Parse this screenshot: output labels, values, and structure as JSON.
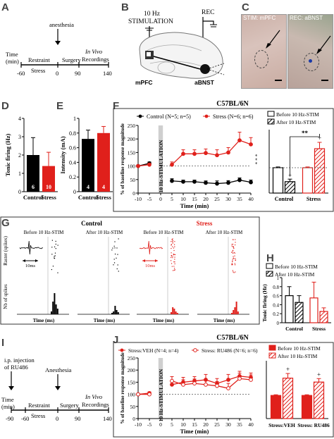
{
  "panels": {
    "A": {
      "letter": "A",
      "anesthesia": "anesthesia",
      "time_label": "Time\n(min)",
      "restraint": "Restraint",
      "surgery": "Surgery",
      "in_vivo": "In Vivo\nRecordings",
      "stress": "Stress",
      "ticks": [
        "-60",
        "0",
        "90",
        "140"
      ]
    },
    "B": {
      "letter": "B",
      "stim_title": "10 Hz\nSTIMULATION",
      "rec": "REC",
      "mpfc": "mPFC",
      "abnst": "aBNST"
    },
    "C": {
      "letter": "C",
      "stim_label": "STIM: mPFC",
      "rec_label": "REC: aBNST"
    },
    "D": {
      "letter": "D",
      "ylabel": "Tonic firing (Hz)",
      "yticks": [
        "0",
        "1",
        "2",
        "3",
        "4"
      ],
      "categories": [
        "Control",
        "Stress"
      ],
      "n_labels": [
        "6",
        "10"
      ]
    },
    "E": {
      "letter": "E",
      "ylabel": "Intensity (mA)",
      "yticks": [
        "0",
        "0.2",
        "0.4",
        "0.6",
        "0.8",
        "1"
      ],
      "categories": [
        "Control",
        "Stress"
      ],
      "n_labels": [
        "4",
        "4"
      ]
    },
    "F": {
      "letter": "F",
      "title": "C57BL/6N",
      "legend_control": "Control (N=5; n=5)",
      "legend_stress": "Stress (N=6; n=6)",
      "ylabel": "% of baseline response magnitude",
      "xlabel": "Time (min)",
      "stim_band": "10 Hz-STIMULATION",
      "yticks": [
        "0",
        "50",
        "100",
        "150",
        "200",
        "250"
      ],
      "xticks": [
        "-10",
        "-5",
        "0",
        "5",
        "10",
        "15",
        "20",
        "25",
        "30",
        "35",
        "40"
      ],
      "sig": "* * *",
      "bar_legend_before": "Before 10 Hz-STIM",
      "bar_legend_after": "After 10 Hz-STIM",
      "bar_categories": [
        "Control",
        "Stress"
      ],
      "bar_sig": "**",
      "plus": "+"
    },
    "G": {
      "letter": "G",
      "control_title": "Control",
      "stress_title": "Stress",
      "before": "Before 10 Hz-STIM",
      "after": "After 10 Hz-STIM",
      "raster_label": "Raster (spikes)",
      "nb_label": "Nb of spikes",
      "xlabel": "Time (ms)",
      "scale": "10ms"
    },
    "H": {
      "letter": "H",
      "legend_before": "Before 10 Hz-STIM",
      "legend_after": "After 10 Hz-STIM",
      "ylabel": "Tonic firing (Hz)",
      "yticks": [
        "0",
        "0.2",
        "0.4",
        "0.6",
        "0.8",
        "1"
      ],
      "categories": [
        "Control",
        "Stress"
      ]
    },
    "I": {
      "letter": "I",
      "injection": "i.p. injection\nof RU486",
      "anesthesia": "Anesthesia",
      "time_label": "Time\n(min)",
      "restraint": "Restraint",
      "surgery": "Surgery",
      "in_vivo": "In Vivo\nRecordings",
      "stress": "Stress",
      "ticks": [
        "-90",
        "-60",
        "0",
        "90",
        "140"
      ]
    },
    "J": {
      "letter": "J",
      "title": "C57BL/6N",
      "legend_veh": "Stress:VEH (N=4; n=4)",
      "legend_ru": "Stress: RU486 (N=6; n=6)",
      "ylabel": "% of baseline response magnitude",
      "xlabel": "Time (min)",
      "stim_band": "10 Hz-STIMULATION",
      "yticks": [
        "0",
        "50",
        "100",
        "150",
        "200",
        "250"
      ],
      "xticks": [
        "-10",
        "-5",
        "0",
        "5",
        "10",
        "15",
        "20",
        "25",
        "30",
        "35",
        "40"
      ],
      "bar_legend_before": "Before 10 Hz-STIM",
      "bar_legend_after": "After 10 Hz-STIM",
      "bar_categories": [
        "Stress:VEH",
        "Stress: RU486"
      ],
      "plus": "+"
    }
  },
  "colors": {
    "red": "#e0201b",
    "black": "#000000",
    "grey_band": "#cfcfcf",
    "panel_border": "#333333"
  },
  "chart_data": [
    {
      "id": "D",
      "type": "bar",
      "categories": [
        "Control",
        "Stress"
      ],
      "values": [
        2.0,
        1.4
      ],
      "errors": [
        0.95,
        0.75
      ],
      "ylabel": "Tonic firing (Hz)",
      "ylim": [
        0,
        4
      ]
    },
    {
      "id": "E",
      "type": "bar",
      "categories": [
        "Control",
        "Stress"
      ],
      "values": [
        0.72,
        0.8
      ],
      "errors": [
        0.12,
        0.09
      ],
      "ylabel": "Intensity (mA)",
      "ylim": [
        0,
        1
      ]
    },
    {
      "id": "F-line",
      "type": "line",
      "title": "C57BL/6N",
      "xlabel": "Time (min)",
      "ylabel": "% of baseline response magnitude",
      "ylim": [
        0,
        250
      ],
      "x": [
        -10,
        -5,
        0,
        5,
        10,
        15,
        20,
        25,
        30,
        35,
        40
      ],
      "series": [
        {
          "name": "Control (N=5; n=5)",
          "values": [
            100,
            110,
            null,
            45,
            42,
            42,
            38,
            35,
            38,
            48,
            40
          ],
          "errors": [
            0,
            5,
            0,
            8,
            6,
            6,
            7,
            10,
            8,
            8,
            8
          ]
        },
        {
          "name": "Stress (N=6; n=6)",
          "values": [
            100,
            105,
            null,
            105,
            145,
            145,
            148,
            140,
            150,
            195,
            180
          ],
          "errors": [
            0,
            5,
            0,
            10,
            15,
            15,
            15,
            20,
            18,
            30,
            25
          ]
        }
      ]
    },
    {
      "id": "F-bar",
      "type": "bar",
      "categories": [
        "Control",
        "Stress"
      ],
      "series": [
        {
          "name": "Before 10 Hz-STIM",
          "values": [
            100,
            100
          ],
          "errors": [
            3,
            3
          ]
        },
        {
          "name": "After 10 Hz-STIM",
          "values": [
            45,
            175
          ],
          "errors": [
            10,
            25
          ]
        }
      ],
      "ylim": [
        0,
        250
      ]
    },
    {
      "id": "H",
      "type": "bar",
      "categories": [
        "Control",
        "Stress"
      ],
      "series": [
        {
          "name": "Before 10 Hz-STIM",
          "values": [
            0.6,
            0.55
          ],
          "errors": [
            0.2,
            0.35
          ]
        },
        {
          "name": "After 10 Hz-STIM",
          "values": [
            0.45,
            0.25
          ],
          "errors": [
            0.15,
            0.08
          ]
        }
      ],
      "ylabel": "Tonic firing (Hz)",
      "ylim": [
        0,
        1
      ]
    },
    {
      "id": "J-line",
      "type": "line",
      "title": "C57BL/6N",
      "xlabel": "Time (min)",
      "ylabel": "% of baseline response magnitude",
      "ylim": [
        0,
        250
      ],
      "x": [
        -10,
        -5,
        0,
        5,
        10,
        15,
        20,
        25,
        30,
        35,
        40
      ],
      "series": [
        {
          "name": "Stress:VEH (N=4; n=4)",
          "values": [
            100,
            105,
            null,
            140,
            150,
            155,
            160,
            145,
            160,
            175,
            170
          ],
          "errors": [
            0,
            5,
            0,
            18,
            20,
            18,
            22,
            20,
            22,
            20,
            18
          ]
        },
        {
          "name": "Stress: RU486 (N=6; n=6)",
          "values": [
            100,
            100,
            null,
            155,
            140,
            145,
            140,
            135,
            125,
            165,
            160
          ],
          "errors": [
            0,
            5,
            0,
            18,
            20,
            18,
            20,
            18,
            20,
            22,
            20
          ]
        }
      ]
    },
    {
      "id": "J-bar",
      "type": "bar",
      "categories": [
        "Stress:VEH",
        "Stress: RU486"
      ],
      "series": [
        {
          "name": "Before 10 Hz-STIM",
          "values": [
            100,
            100
          ],
          "errors": [
            3,
            3
          ]
        },
        {
          "name": "After 10 Hz-STIM",
          "values": [
            175,
            158
          ],
          "errors": [
            20,
            15
          ]
        }
      ],
      "ylim": [
        0,
        250
      ]
    }
  ]
}
